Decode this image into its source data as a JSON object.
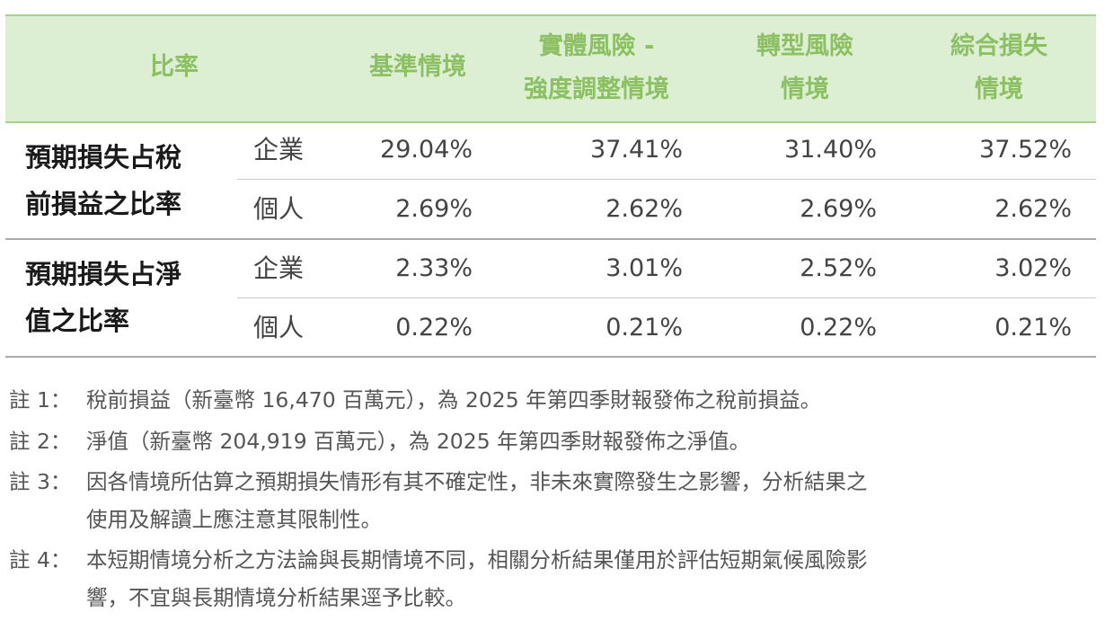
{
  "table": {
    "headers": {
      "ratio": "比率",
      "base": "基準情境",
      "physical_line1": "實體風險 -",
      "physical_line2": "強度調整情境",
      "transition_line1": "轉型風險",
      "transition_line2": "情境",
      "combined_line1": "綜合損失",
      "combined_line2": "情境"
    },
    "groups": [
      {
        "label_line1": "預期損失占稅",
        "label_line2": "前損益之比率",
        "rows": [
          {
            "type": "企業",
            "base": "29.04%",
            "physical": "37.41%",
            "transition": "31.40%",
            "combined": "37.52%"
          },
          {
            "type": "個人",
            "base": "2.69%",
            "physical": "2.62%",
            "transition": "2.69%",
            "combined": "2.62%"
          }
        ]
      },
      {
        "label_line1": "預期損失占淨",
        "label_line2": "值之比率",
        "rows": [
          {
            "type": "企業",
            "base": "2.33%",
            "physical": "3.01%",
            "transition": "2.52%",
            "combined": "3.02%"
          },
          {
            "type": "個人",
            "base": "0.22%",
            "physical": "0.21%",
            "transition": "0.22%",
            "combined": "0.21%"
          }
        ]
      }
    ]
  },
  "notes": [
    {
      "key": "註 1：",
      "line1": "稅前損益（新臺幣 16,470 百萬元），為 2025 年第四季財報發佈之稅前損益。"
    },
    {
      "key": "註 2：",
      "line1": "淨值（新臺幣 204,919 百萬元），為 2025 年第四季財報發佈之淨值。"
    },
    {
      "key": "註 3：",
      "line1": "因各情境所估算之預期損失情形有其不確定性，非未來實際發生之影響，分析結果之",
      "line2": "使用及解讀上應注意其限制性。"
    },
    {
      "key": "註 4：",
      "line1": "本短期情境分析之方法論與長期情境不同，相關分析結果僅用於評估短期氣候風險影",
      "line2": "響，不宜與長期情境分析結果逕予比較。"
    }
  ]
}
